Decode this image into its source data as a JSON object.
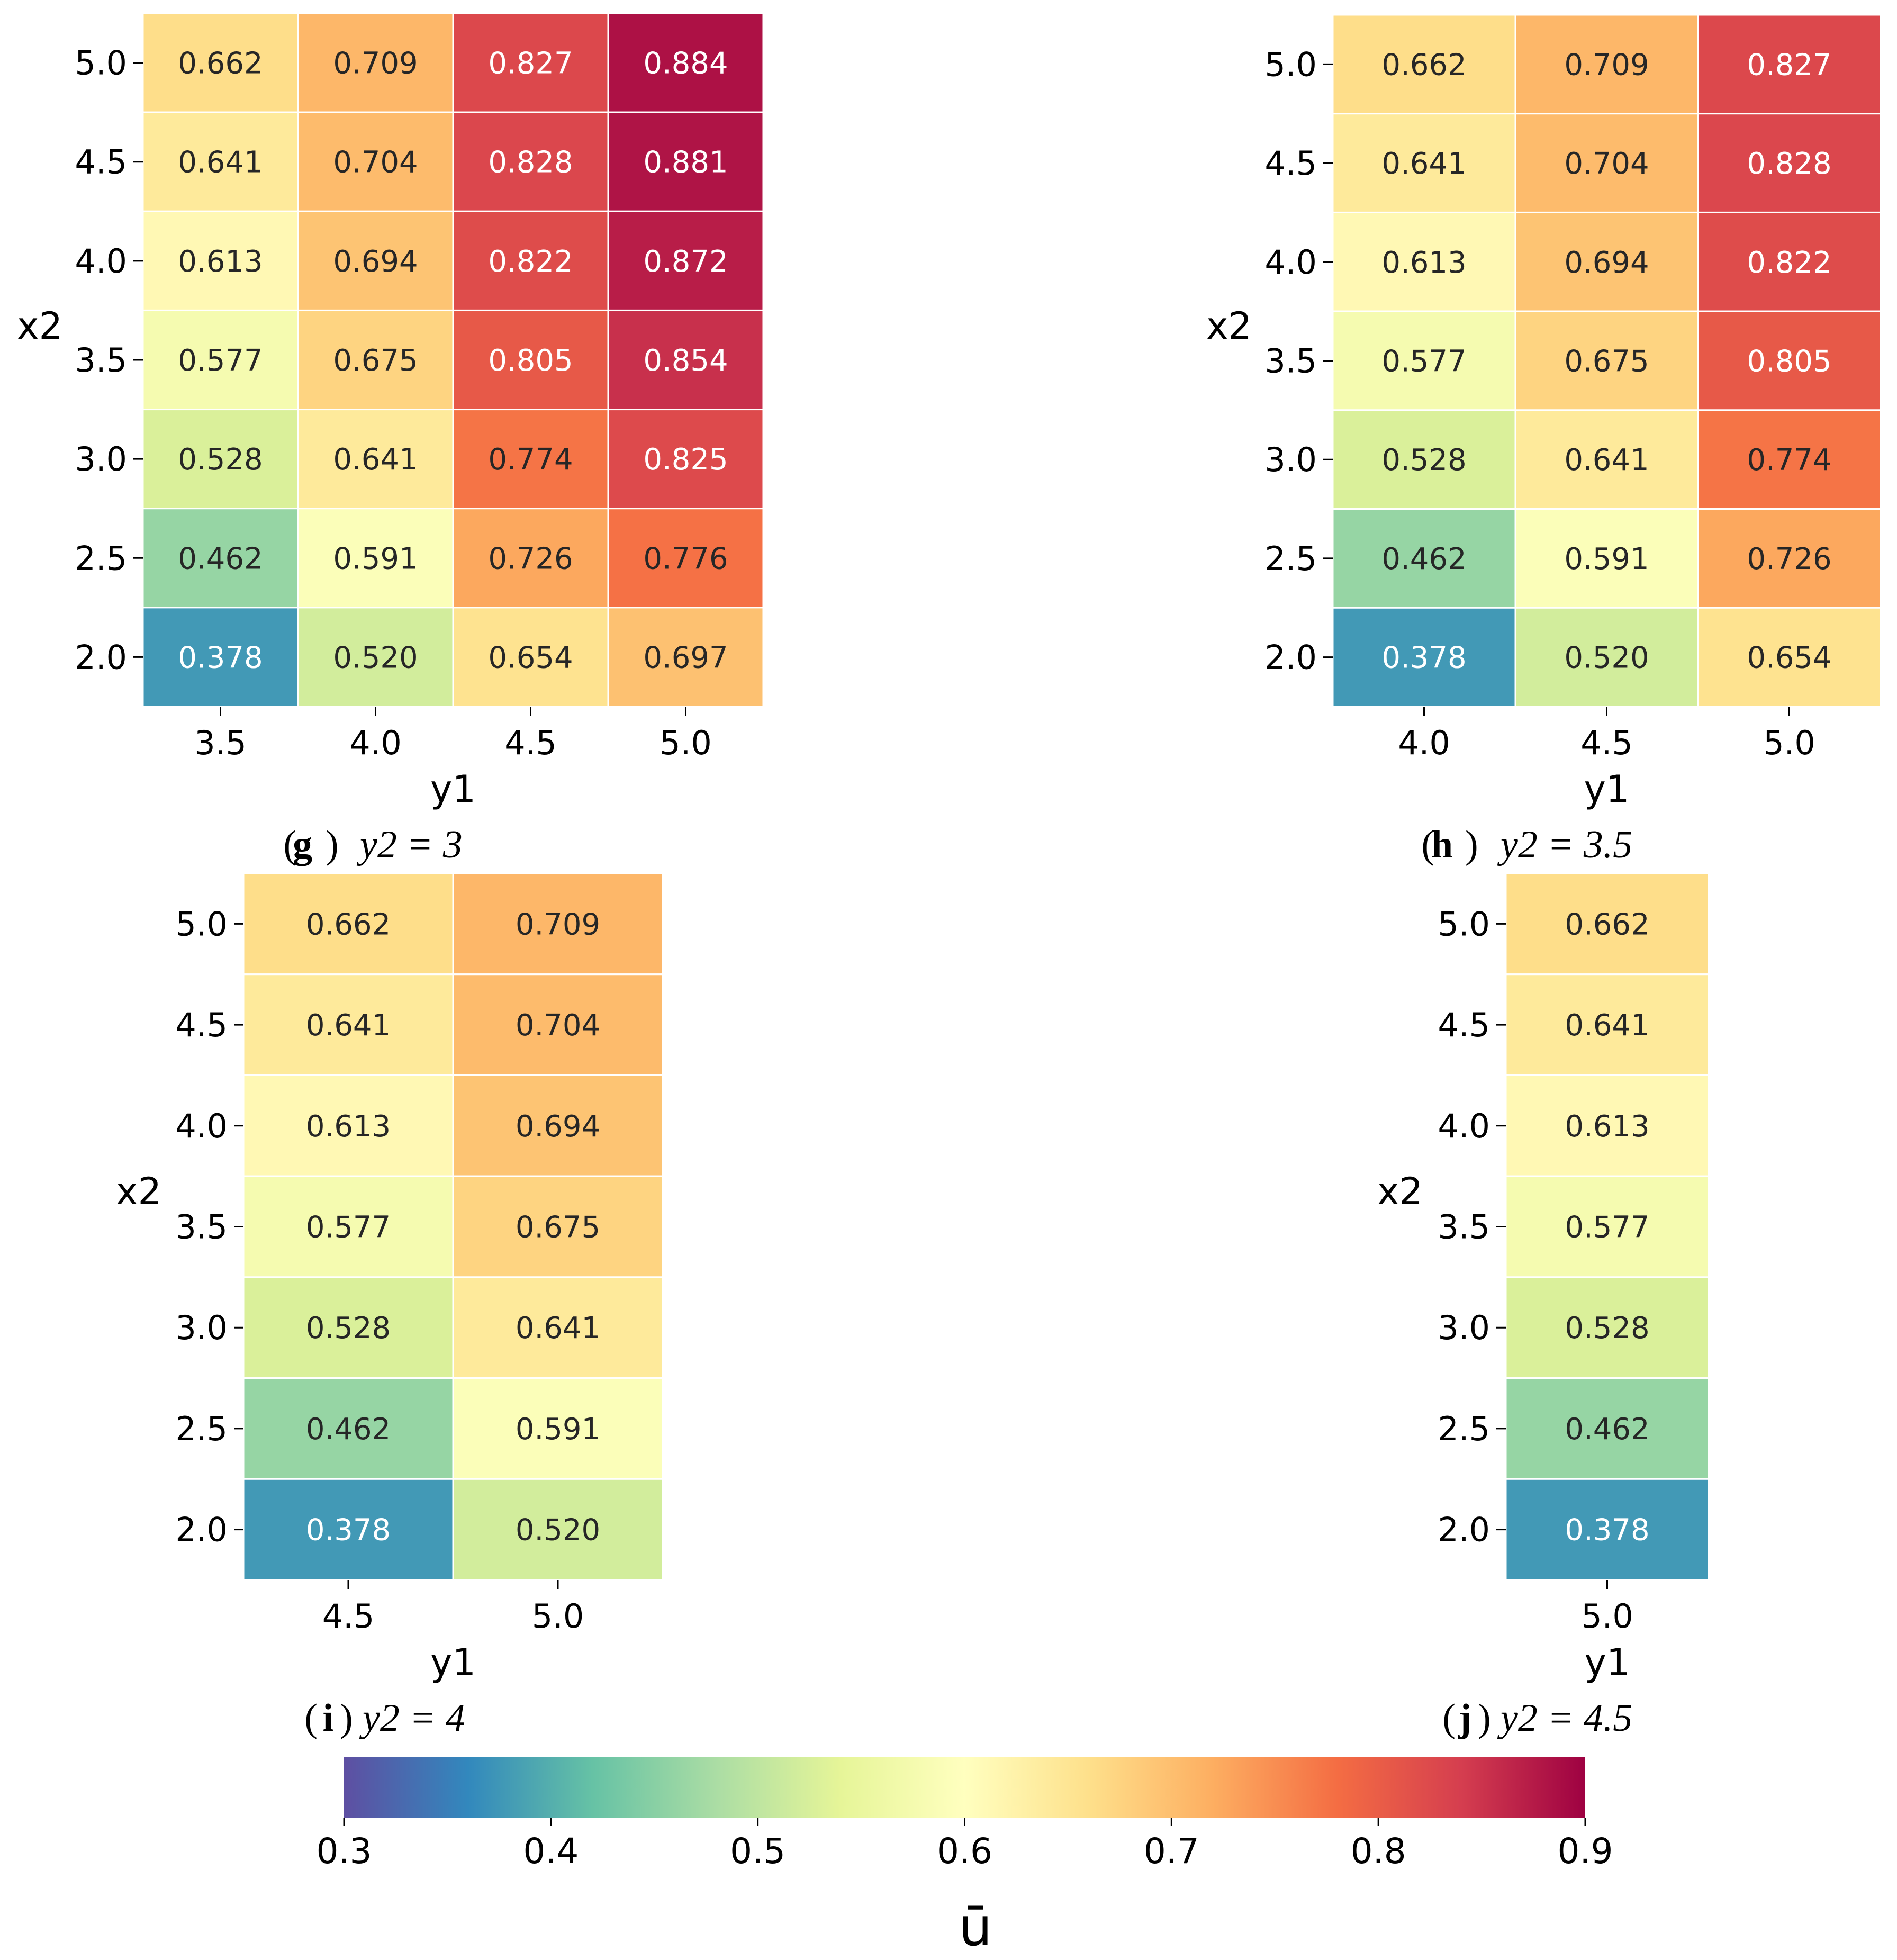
{
  "chart_data": [
    {
      "type": "heatmap",
      "panel": "g",
      "caption_label": "g",
      "caption_text": "y2 = 3",
      "xlabel": "y1",
      "ylabel": "x2",
      "x": [
        "3.5",
        "4.0",
        "4.5",
        "5.0"
      ],
      "y": [
        "5.0",
        "4.5",
        "4.0",
        "3.5",
        "3.0",
        "2.5",
        "2.0"
      ],
      "values": [
        [
          0.662,
          0.709,
          0.827,
          0.884
        ],
        [
          0.641,
          0.704,
          0.828,
          0.881
        ],
        [
          0.613,
          0.694,
          0.822,
          0.872
        ],
        [
          0.577,
          0.675,
          0.805,
          0.854
        ],
        [
          0.528,
          0.641,
          0.774,
          0.825
        ],
        [
          0.462,
          0.591,
          0.726,
          0.776
        ],
        [
          0.378,
          0.52,
          0.654,
          0.697
        ]
      ]
    },
    {
      "type": "heatmap",
      "panel": "h",
      "caption_label": "h",
      "caption_text": "y2 = 3.5",
      "xlabel": "y1",
      "ylabel": "x2",
      "x": [
        "4.0",
        "4.5",
        "5.0"
      ],
      "y": [
        "5.0",
        "4.5",
        "4.0",
        "3.5",
        "3.0",
        "2.5",
        "2.0"
      ],
      "values": [
        [
          0.662,
          0.709,
          0.827
        ],
        [
          0.641,
          0.704,
          0.828
        ],
        [
          0.613,
          0.694,
          0.822
        ],
        [
          0.577,
          0.675,
          0.805
        ],
        [
          0.528,
          0.641,
          0.774
        ],
        [
          0.462,
          0.591,
          0.726
        ],
        [
          0.378,
          0.52,
          0.654
        ]
      ]
    },
    {
      "type": "heatmap",
      "panel": "i",
      "caption_label": "i",
      "caption_text": "y2 = 4",
      "xlabel": "y1",
      "ylabel": "x2",
      "x": [
        "4.5",
        "5.0"
      ],
      "y": [
        "5.0",
        "4.5",
        "4.0",
        "3.5",
        "3.0",
        "2.5",
        "2.0"
      ],
      "values": [
        [
          0.662,
          0.709
        ],
        [
          0.641,
          0.704
        ],
        [
          0.613,
          0.694
        ],
        [
          0.577,
          0.675
        ],
        [
          0.528,
          0.641
        ],
        [
          0.462,
          0.591
        ],
        [
          0.378,
          0.52
        ]
      ]
    },
    {
      "type": "heatmap",
      "panel": "j",
      "caption_label": "j",
      "caption_text": "y2 = 4.5",
      "xlabel": "y1",
      "ylabel": "x2",
      "x": [
        "5.0"
      ],
      "y": [
        "5.0",
        "4.5",
        "4.0",
        "3.5",
        "3.0",
        "2.5",
        "2.0"
      ],
      "values": [
        [
          0.662
        ],
        [
          0.641
        ],
        [
          0.613
        ],
        [
          0.577
        ],
        [
          0.528
        ],
        [
          0.462
        ],
        [
          0.378
        ]
      ]
    }
  ],
  "colorbar": {
    "label": "ū",
    "range": [
      0.3,
      0.9
    ],
    "ticks": [
      "0.3",
      "0.4",
      "0.5",
      "0.6",
      "0.7",
      "0.8",
      "0.9"
    ],
    "colormap": "Spectral_r"
  },
  "colors": {
    "text_dark": "#262626",
    "text_light": "#ffffff",
    "cell_border": "#ffffff",
    "axis": "#000000"
  }
}
